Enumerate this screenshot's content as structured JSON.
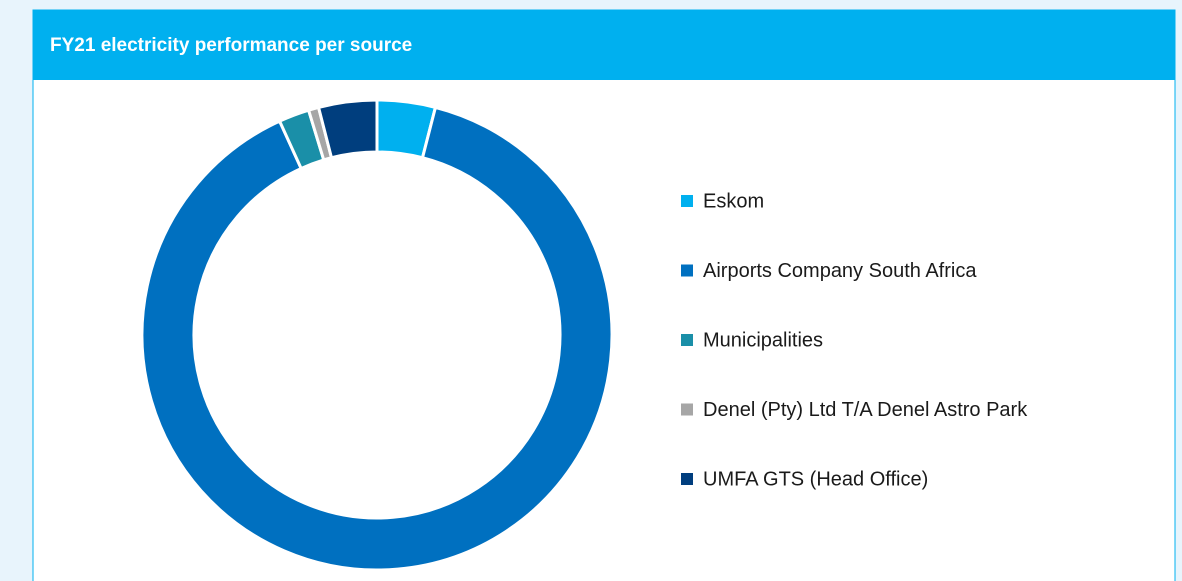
{
  "chart_data": {
    "type": "donut",
    "title": "FY21 electricity performance per source",
    "categories": [
      "Eskom",
      "Airports Company South Africa",
      "Municipalities",
      "Denel (Pty) Ltd T/A Denel Astro Park",
      "UMFA GTS (Head Office)"
    ],
    "values": [
      4,
      89.2,
      2.1,
      0.7,
      4
    ],
    "colors": [
      "#00b0ef",
      "#0070c0",
      "#1a8fa8",
      "#a6a6a6",
      "#003e7e"
    ],
    "legend": "right"
  }
}
